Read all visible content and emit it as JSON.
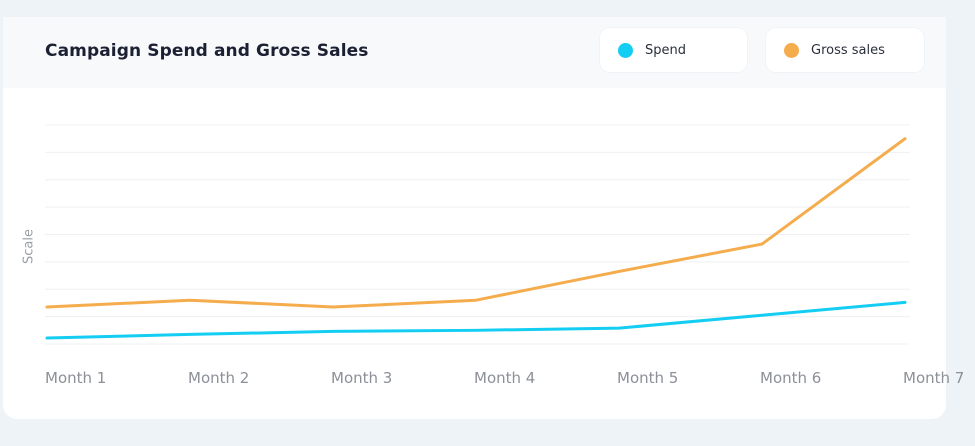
{
  "chart_data": {
    "type": "line",
    "title": "Campaign Spend and Gross Sales",
    "xlabel": "",
    "ylabel": "Scale",
    "categories": [
      "Month 1",
      "Month 2",
      "Month 3",
      "Month 4",
      "Month 5",
      "Month 6",
      "Month 7"
    ],
    "ylim": [
      0,
      8
    ],
    "grid": true,
    "legend_position": "top-right",
    "series": [
      {
        "name": "Spend",
        "color": "#14cdf2",
        "values": [
          0.22,
          0.35,
          0.46,
          0.5,
          0.58,
          1.05,
          1.52
        ]
      },
      {
        "name": "Gross sales",
        "color": "#f5ac4d",
        "values": [
          1.35,
          1.6,
          1.35,
          1.6,
          2.65,
          3.65,
          7.5
        ]
      }
    ]
  }
}
